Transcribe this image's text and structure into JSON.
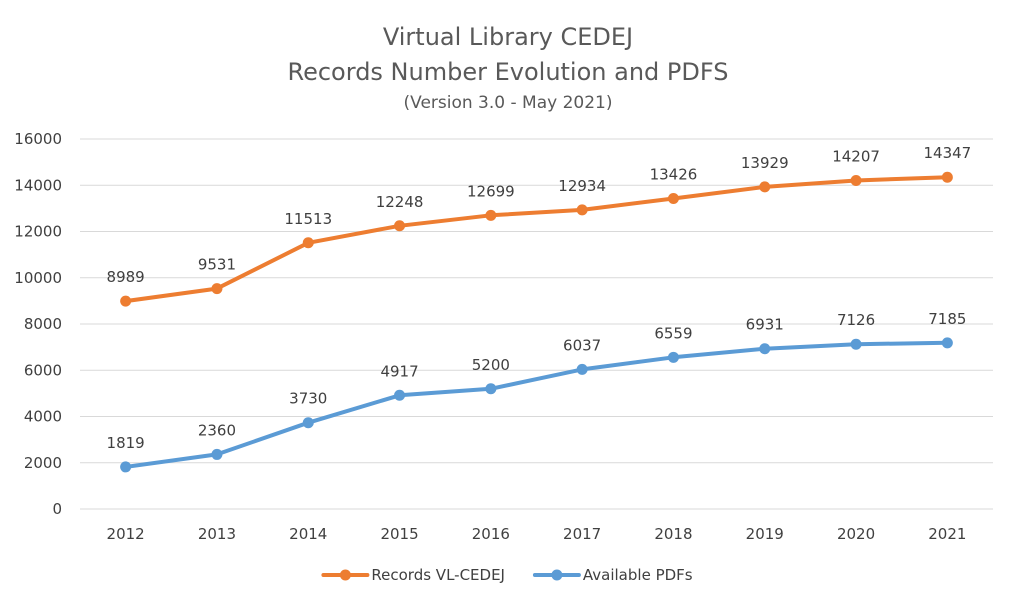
{
  "chart_data": {
    "type": "line",
    "title": "Virtual Library CEDEJ",
    "subtitle": "Records Number Evolution and PDFS",
    "subtitle2": "(Version 3.0 - May 2021)",
    "xlabel": "",
    "ylabel": "",
    "categories": [
      "2012",
      "2013",
      "2014",
      "2015",
      "2016",
      "2017",
      "2018",
      "2019",
      "2020",
      "2021"
    ],
    "ylim": [
      0,
      16000
    ],
    "yticks": [
      0,
      2000,
      4000,
      6000,
      8000,
      10000,
      12000,
      14000,
      16000
    ],
    "grid": true,
    "legend_position": "bottom",
    "series": [
      {
        "name": "Records VL-CEDEJ",
        "color": "#ed7d31",
        "values": [
          8989,
          9531,
          11513,
          12248,
          12699,
          12934,
          13426,
          13929,
          14207,
          14347
        ]
      },
      {
        "name": "Available PDFs",
        "color": "#5b9bd5",
        "values": [
          1819,
          2360,
          3730,
          4917,
          5200,
          6037,
          6559,
          6931,
          7126,
          7185
        ]
      }
    ]
  }
}
